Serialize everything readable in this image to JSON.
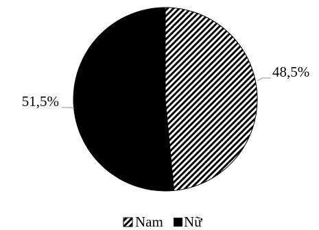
{
  "chart_data": {
    "type": "pie",
    "title": "",
    "slices": [
      {
        "label": "Nam",
        "value": 48.5,
        "value_label": "48,5%",
        "fill": "hatched"
      },
      {
        "label": "Nữ",
        "value": 51.5,
        "value_label": "51,5%",
        "fill": "#000000"
      }
    ],
    "start": "12 o'clock",
    "direction": "clockwise",
    "legend": {
      "placement": "bottom",
      "entries": [
        "Nam",
        "Nữ"
      ]
    },
    "colors": {
      "primary": "#000000",
      "background": "#ffffff",
      "leader_line": "#a6a6a6"
    }
  }
}
